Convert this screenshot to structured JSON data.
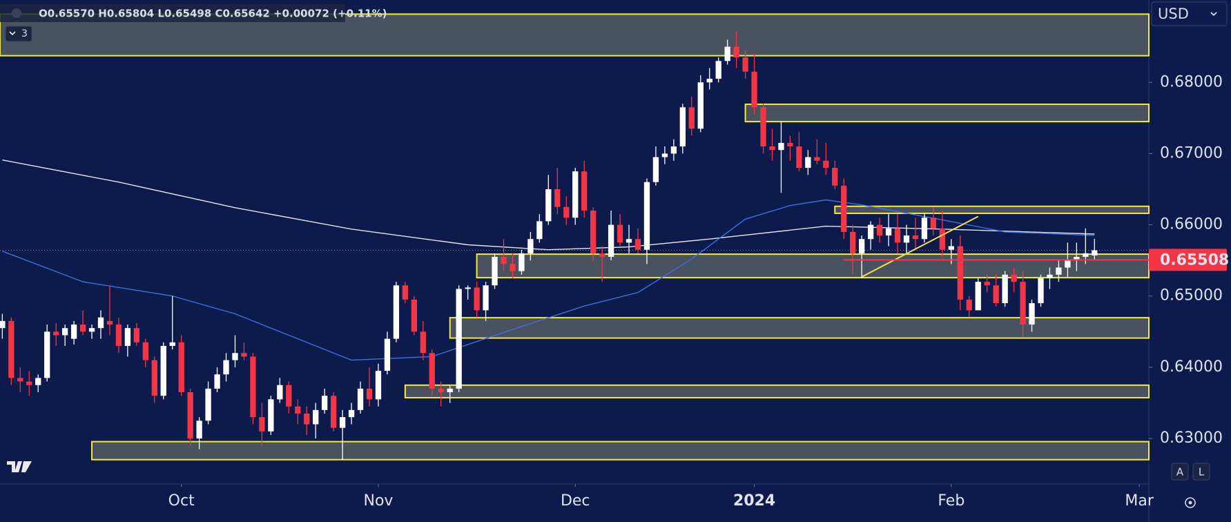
{
  "chart_data": {
    "type": "candlestick",
    "header": "O0.65570 H0.65804 L0.65498 C0.65642 +0.00072 (+0.11%)",
    "indicator_count": "3",
    "currency": "USD",
    "scale_buttons": [
      "A",
      "L"
    ],
    "up_color": "#ffffff",
    "down_color": "#f23645",
    "zone_color": "#f5eb3b",
    "zone_fill": "rgba(150,150,120,0.45)",
    "ylim": [
      0.62361,
      0.69156
    ],
    "yticks": [
      {
        "value": 0.63,
        "label": "0.63000"
      },
      {
        "value": 0.64,
        "label": "0.64000"
      },
      {
        "value": 0.65,
        "label": "0.65000"
      },
      {
        "value": 0.66,
        "label": "0.66000"
      },
      {
        "value": 0.67,
        "label": "0.67000"
      },
      {
        "value": 0.68,
        "label": "0.68000"
      }
    ],
    "xlim": [
      -0.26,
      128.07
    ],
    "xticks": [
      {
        "value": 20,
        "label": "Oct"
      },
      {
        "value": 42,
        "label": "Nov"
      },
      {
        "value": 64,
        "label": "Dec"
      },
      {
        "value": 84,
        "label": "2024"
      },
      {
        "value": 106,
        "label": "Feb"
      },
      {
        "value": 127,
        "label": "Mar"
      }
    ],
    "candles": {
      "open": [
        0.6455,
        0.6465,
        0.6385,
        0.638,
        0.6375,
        0.6385,
        0.645,
        0.6445,
        0.644,
        0.646,
        0.645,
        0.6455,
        0.6465,
        0.646,
        0.643,
        0.6455,
        0.6435,
        0.641,
        0.636,
        0.643,
        0.6435,
        0.6365,
        0.63,
        0.6325,
        0.637,
        0.639,
        0.641,
        0.642,
        0.6415,
        0.633,
        0.631,
        0.6355,
        0.6375,
        0.6345,
        0.6335,
        0.632,
        0.634,
        0.636,
        0.6315,
        0.633,
        0.634,
        0.637,
        0.6355,
        0.6395,
        0.644,
        0.6515,
        0.6495,
        0.645,
        0.642,
        0.637,
        0.6365,
        0.637,
        0.651,
        0.6512,
        0.648,
        0.6515,
        0.6555,
        0.6545,
        0.6535,
        0.656,
        0.658,
        0.6605,
        0.665,
        0.6625,
        0.661,
        0.6675,
        0.662,
        0.656,
        0.6555,
        0.66,
        0.6575,
        0.658,
        0.6565,
        0.666,
        0.6695,
        0.67,
        0.671,
        0.6765,
        0.6735,
        0.68,
        0.6805,
        0.683,
        0.685,
        0.6835,
        0.6815,
        0.6765,
        0.671,
        0.6705,
        0.6715,
        0.671,
        0.668,
        0.6695,
        0.669,
        0.668,
        0.6655,
        0.659,
        0.656,
        0.658,
        0.66,
        0.6585,
        0.6595,
        0.6575,
        0.6585,
        0.658,
        0.661,
        0.6595,
        0.6565,
        0.657,
        0.6495,
        0.648,
        0.652,
        0.6515,
        0.649,
        0.653,
        0.652,
        0.646,
        0.649,
        0.6525,
        0.653,
        0.654,
        0.655,
        0.6555,
        0.6557
      ],
      "high": [
        0.6475,
        0.647,
        0.64,
        0.6395,
        0.639,
        0.646,
        0.6462,
        0.646,
        0.6465,
        0.648,
        0.646,
        0.648,
        0.6515,
        0.647,
        0.646,
        0.6462,
        0.644,
        0.6415,
        0.6435,
        0.65,
        0.6445,
        0.637,
        0.633,
        0.638,
        0.64,
        0.642,
        0.6445,
        0.6435,
        0.642,
        0.635,
        0.636,
        0.6385,
        0.638,
        0.6355,
        0.6345,
        0.635,
        0.637,
        0.6365,
        0.634,
        0.635,
        0.638,
        0.64,
        0.6405,
        0.645,
        0.652,
        0.652,
        0.65,
        0.6465,
        0.6425,
        0.638,
        0.6375,
        0.6515,
        0.6515,
        0.652,
        0.652,
        0.656,
        0.658,
        0.656,
        0.6565,
        0.659,
        0.6615,
        0.667,
        0.668,
        0.664,
        0.668,
        0.669,
        0.6625,
        0.657,
        0.662,
        0.6615,
        0.66,
        0.6595,
        0.6665,
        0.671,
        0.671,
        0.672,
        0.677,
        0.678,
        0.681,
        0.682,
        0.6835,
        0.686,
        0.6871,
        0.6845,
        0.684,
        0.677,
        0.6735,
        0.6745,
        0.6725,
        0.673,
        0.6705,
        0.672,
        0.6715,
        0.669,
        0.6665,
        0.66,
        0.6585,
        0.6605,
        0.661,
        0.6615,
        0.6615,
        0.66,
        0.661,
        0.6615,
        0.6625,
        0.662,
        0.658,
        0.6585,
        0.65,
        0.6525,
        0.653,
        0.653,
        0.6535,
        0.654,
        0.6535,
        0.6495,
        0.653,
        0.654,
        0.655,
        0.6575,
        0.6575,
        0.6595,
        0.65804
      ],
      "low": [
        0.644,
        0.6375,
        0.6365,
        0.636,
        0.6365,
        0.638,
        0.643,
        0.643,
        0.6432,
        0.6445,
        0.644,
        0.644,
        0.6445,
        0.642,
        0.6415,
        0.643,
        0.64,
        0.635,
        0.6355,
        0.6425,
        0.636,
        0.629,
        0.6285,
        0.632,
        0.6365,
        0.638,
        0.64,
        0.641,
        0.632,
        0.629,
        0.6305,
        0.635,
        0.6335,
        0.632,
        0.6305,
        0.63,
        0.6335,
        0.631,
        0.627,
        0.632,
        0.6335,
        0.6345,
        0.6345,
        0.639,
        0.6435,
        0.649,
        0.6445,
        0.641,
        0.636,
        0.6345,
        0.635,
        0.6365,
        0.6495,
        0.647,
        0.6465,
        0.651,
        0.6535,
        0.6525,
        0.653,
        0.655,
        0.6575,
        0.66,
        0.6615,
        0.66,
        0.66,
        0.661,
        0.655,
        0.652,
        0.655,
        0.657,
        0.656,
        0.656,
        0.6545,
        0.6655,
        0.6685,
        0.669,
        0.67,
        0.6725,
        0.673,
        0.679,
        0.68,
        0.6825,
        0.682,
        0.6805,
        0.6755,
        0.67,
        0.669,
        0.6645,
        0.669,
        0.6675,
        0.667,
        0.6685,
        0.667,
        0.665,
        0.658,
        0.653,
        0.6525,
        0.6565,
        0.6575,
        0.657,
        0.656,
        0.656,
        0.6565,
        0.6575,
        0.6585,
        0.6555,
        0.6545,
        0.648,
        0.647,
        0.648,
        0.6505,
        0.6485,
        0.6485,
        0.6505,
        0.6443,
        0.645,
        0.6485,
        0.651,
        0.652,
        0.6525,
        0.6535,
        0.6545,
        0.65498
      ],
      "close": [
        0.6465,
        0.6385,
        0.638,
        0.6375,
        0.6385,
        0.645,
        0.6445,
        0.6455,
        0.646,
        0.645,
        0.6455,
        0.647,
        0.646,
        0.643,
        0.6455,
        0.6435,
        0.641,
        0.636,
        0.643,
        0.6435,
        0.6365,
        0.63,
        0.6325,
        0.637,
        0.639,
        0.641,
        0.642,
        0.6415,
        0.633,
        0.631,
        0.6355,
        0.6375,
        0.6345,
        0.6335,
        0.632,
        0.634,
        0.636,
        0.6315,
        0.633,
        0.634,
        0.637,
        0.6355,
        0.6395,
        0.644,
        0.6515,
        0.6495,
        0.645,
        0.642,
        0.637,
        0.6365,
        0.637,
        0.651,
        0.6512,
        0.648,
        0.6515,
        0.6555,
        0.6545,
        0.6535,
        0.656,
        0.658,
        0.6605,
        0.665,
        0.6625,
        0.661,
        0.6675,
        0.662,
        0.656,
        0.6555,
        0.66,
        0.6575,
        0.658,
        0.6565,
        0.666,
        0.6695,
        0.67,
        0.671,
        0.6765,
        0.6735,
        0.68,
        0.6805,
        0.683,
        0.685,
        0.6835,
        0.6815,
        0.6765,
        0.671,
        0.6705,
        0.6715,
        0.671,
        0.668,
        0.6695,
        0.669,
        0.668,
        0.6655,
        0.659,
        0.656,
        0.658,
        0.66,
        0.6585,
        0.6595,
        0.6575,
        0.6585,
        0.658,
        0.661,
        0.6595,
        0.6565,
        0.657,
        0.6495,
        0.648,
        0.652,
        0.6515,
        0.649,
        0.653,
        0.652,
        0.646,
        0.649,
        0.6525,
        0.653,
        0.654,
        0.655,
        0.6555,
        0.656,
        0.65642
      ]
    },
    "lines": [
      {
        "color": "#e6e6ea",
        "x": [
          0,
          13,
          26,
          39,
          52,
          61,
          70,
          79,
          92,
          105,
          122
        ],
        "values": [
          0.6691,
          0.666,
          0.6624,
          0.6594,
          0.6572,
          0.6565,
          0.6569,
          0.658,
          0.6598,
          0.6594,
          0.6587
        ]
      },
      {
        "color": "#3f6fe0",
        "x": [
          0,
          9,
          19,
          26,
          39,
          48,
          57,
          65,
          71,
          77,
          83,
          88,
          92,
          96,
          105,
          112,
          122
        ],
        "values": [
          0.6563,
          0.652,
          0.65,
          0.6475,
          0.641,
          0.6415,
          0.6453,
          0.6486,
          0.6505,
          0.6552,
          0.6608,
          0.6627,
          0.6635,
          0.6628,
          0.6607,
          0.659,
          0.6585
        ]
      }
    ],
    "zones": [
      {
        "top": 0.68958,
        "bottom": 0.68374
      },
      {
        "from": 83,
        "top": 0.67692,
        "bottom": 0.67449
      },
      {
        "from": 93,
        "top": 0.6626,
        "bottom": 0.66161
      },
      {
        "from": 53,
        "top": 0.65588,
        "bottom": 0.65258
      },
      {
        "from": 50,
        "top": 0.64696,
        "bottom": 0.6441
      },
      {
        "from": 45,
        "top": 0.63749,
        "bottom": 0.63573
      },
      {
        "from": 10,
        "top": 0.62956,
        "bottom": 0.62703
      }
    ],
    "trendline": {
      "color": "#f5e050",
      "x": [
        96,
        109
      ],
      "values": [
        0.65269,
        0.66117
      ]
    },
    "hline": {
      "value": 0.65508,
      "from": 94,
      "color": "#f23645"
    }
  }
}
